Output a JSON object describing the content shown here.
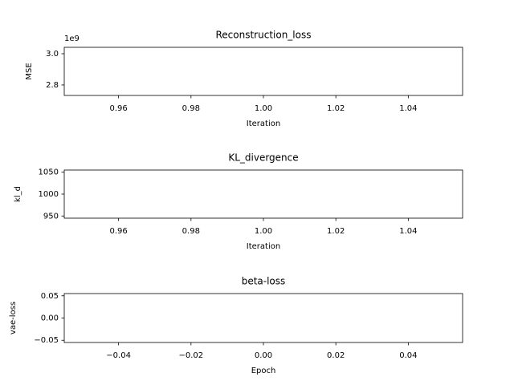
{
  "chart_data": [
    {
      "type": "line",
      "title": "Reconstruction_loss",
      "xlabel": "Iteration",
      "ylabel": "MSE",
      "y_offset_text": "1e9",
      "xlim": [
        0.945,
        1.055
      ],
      "xticks": [
        0.96,
        0.98,
        {
          "value": 1.0,
          "label": "1.00"
        },
        1.02,
        1.04
      ],
      "ylim": [
        2733000000,
        3041000000
      ],
      "yticks": [
        {
          "value": 2800000000,
          "label": "2.8"
        },
        {
          "value": 3000000000,
          "label": "3.0"
        }
      ]
    },
    {
      "type": "line",
      "title": "KL_divergence",
      "xlabel": "Iteration",
      "ylabel": "kl_d",
      "xlim": [
        0.945,
        1.055
      ],
      "xticks": [
        0.96,
        0.98,
        {
          "value": 1.0,
          "label": "1.00"
        },
        1.02,
        1.04
      ],
      "ylim": [
        945,
        1055
      ],
      "yticks": [
        950,
        1000,
        1050
      ]
    },
    {
      "type": "line",
      "title": "beta-loss",
      "xlabel": "Epoch",
      "ylabel": "vae-loss",
      "xlim": [
        -0.055,
        0.055
      ],
      "xticks": [
        {
          "value": -0.04,
          "label": "−0.04"
        },
        {
          "value": -0.02,
          "label": "−0.02"
        },
        {
          "value": 0,
          "label": "0.00"
        },
        0.02,
        0.04
      ],
      "ylim": [
        -0.055,
        0.055
      ],
      "yticks": [
        {
          "value": -0.05,
          "label": "−0.05"
        },
        {
          "value": 0,
          "label": "0.00"
        },
        0.05
      ]
    }
  ]
}
